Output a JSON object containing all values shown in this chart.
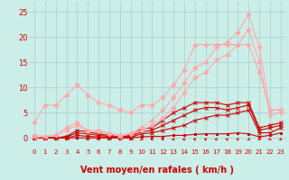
{
  "bg_color": "#cceee8",
  "grid_color": "#aacccc",
  "xlabel": "Vent moyen/en rafales ( km/h )",
  "xlabel_color": "#cc0000",
  "xlabel_fontsize": 7,
  "xtick_fontsize": 5,
  "ytick_fontsize": 6,
  "yticks": [
    0,
    5,
    10,
    15,
    20,
    25
  ],
  "ylim": [
    -0.5,
    27
  ],
  "xlim": [
    -0.5,
    23.5
  ],
  "arrow_color": "#cc0000",
  "series": [
    {
      "x": [
        0,
        1,
        2,
        3,
        4,
        5,
        6,
        7,
        8,
        9,
        10,
        11,
        12,
        13,
        14,
        15,
        16,
        17,
        18,
        19,
        20,
        21,
        22,
        23
      ],
      "y": [
        0,
        0,
        0,
        0,
        0,
        0,
        0,
        0,
        0,
        0,
        0.2,
        0.3,
        0.3,
        0.5,
        0.5,
        0.7,
        0.8,
        0.8,
        0.8,
        1.0,
        0.8,
        0.2,
        0.5,
        1.0
      ],
      "color": "#cc0000",
      "lw": 0.8,
      "marker": "s",
      "ms": 2.0
    },
    {
      "x": [
        0,
        1,
        2,
        3,
        4,
        5,
        6,
        7,
        8,
        9,
        10,
        11,
        12,
        13,
        14,
        15,
        16,
        17,
        18,
        19,
        20,
        21,
        22,
        23
      ],
      "y": [
        0,
        0,
        0,
        0,
        0.5,
        0.3,
        0.2,
        0.1,
        0.1,
        0.1,
        0.8,
        1.0,
        1.5,
        2.0,
        2.5,
        3.5,
        4.0,
        4.5,
        4.5,
        5.0,
        5.5,
        1.0,
        1.0,
        2.0
      ],
      "color": "#cc0000",
      "lw": 0.8,
      "marker": "x",
      "ms": 2.5
    },
    {
      "x": [
        0,
        1,
        2,
        3,
        4,
        5,
        6,
        7,
        8,
        9,
        10,
        11,
        12,
        13,
        14,
        15,
        16,
        17,
        18,
        19,
        20,
        21,
        22,
        23
      ],
      "y": [
        0,
        0,
        0,
        0.2,
        1.0,
        0.8,
        0.5,
        0.3,
        0.2,
        0.3,
        1.2,
        1.5,
        2.5,
        3.5,
        4.5,
        5.5,
        6.0,
        6.0,
        5.5,
        6.0,
        6.5,
        1.5,
        2.0,
        2.5
      ],
      "color": "#cc0000",
      "lw": 0.8,
      "marker": "x",
      "ms": 2.5
    },
    {
      "x": [
        0,
        1,
        2,
        3,
        4,
        5,
        6,
        7,
        8,
        9,
        10,
        11,
        12,
        13,
        14,
        15,
        16,
        17,
        18,
        19,
        20,
        21,
        22,
        23
      ],
      "y": [
        0,
        0,
        0,
        0.3,
        1.5,
        1.2,
        0.8,
        0.5,
        0.3,
        0.5,
        1.8,
        2.0,
        3.5,
        5.0,
        6.0,
        7.0,
        7.0,
        7.0,
        6.5,
        7.0,
        7.0,
        2.0,
        2.5,
        3.0
      ],
      "color": "#cc0000",
      "lw": 0.8,
      "marker": "x",
      "ms": 2.5
    },
    {
      "x": [
        0,
        1,
        2,
        3,
        4,
        5,
        6,
        7,
        8,
        9,
        10,
        11,
        12,
        13,
        14,
        15,
        16,
        17,
        18,
        19,
        20,
        21,
        22,
        23
      ],
      "y": [
        3.0,
        6.5,
        6.5,
        8.5,
        10.5,
        8.5,
        7.0,
        6.5,
        5.5,
        5.0,
        6.5,
        6.5,
        8.0,
        10.5,
        13.5,
        18.5,
        18.5,
        18.5,
        18.5,
        18.5,
        18.5,
        13.0,
        5.5,
        5.5
      ],
      "color": "#ffaaaa",
      "lw": 0.8,
      "marker": "D",
      "ms": 2.5
    },
    {
      "x": [
        0,
        1,
        2,
        3,
        4,
        5,
        6,
        7,
        8,
        9,
        10,
        11,
        12,
        13,
        14,
        15,
        16,
        17,
        18,
        19,
        20,
        21,
        22,
        23
      ],
      "y": [
        0.5,
        0.3,
        0.5,
        2.0,
        3.0,
        1.5,
        1.5,
        1.0,
        0.5,
        1.0,
        2.0,
        3.5,
        5.5,
        8.0,
        11.0,
        14.0,
        15.0,
        18.0,
        19.0,
        21.0,
        24.5,
        18.0,
        5.5,
        5.5
      ],
      "color": "#ffaaaa",
      "lw": 0.8,
      "marker": "D",
      "ms": 2.5
    },
    {
      "x": [
        0,
        1,
        2,
        3,
        4,
        5,
        6,
        7,
        8,
        9,
        10,
        11,
        12,
        13,
        14,
        15,
        16,
        17,
        18,
        19,
        20,
        21,
        22,
        23
      ],
      "y": [
        0.0,
        0.3,
        0.5,
        1.5,
        2.5,
        1.2,
        1.2,
        0.8,
        0.3,
        0.8,
        1.5,
        2.5,
        4.0,
        6.0,
        9.0,
        12.0,
        13.0,
        15.5,
        16.5,
        18.5,
        21.5,
        15.0,
        4.5,
        5.0
      ],
      "color": "#ffaaaa",
      "lw": 0.8,
      "marker": "D",
      "ms": 2.5
    }
  ],
  "wind_arrows_x": [
    0,
    1,
    2,
    3,
    4,
    5,
    6,
    7,
    8,
    9,
    10,
    11,
    12,
    13,
    14,
    15,
    16,
    17,
    18,
    19,
    20,
    21,
    22,
    23
  ],
  "wind_arrows_angles": [
    270,
    270,
    270,
    315,
    0,
    270,
    270,
    270,
    270,
    315,
    315,
    270,
    270,
    270,
    270,
    270,
    270,
    270,
    270,
    270,
    315,
    315,
    45,
    45
  ]
}
